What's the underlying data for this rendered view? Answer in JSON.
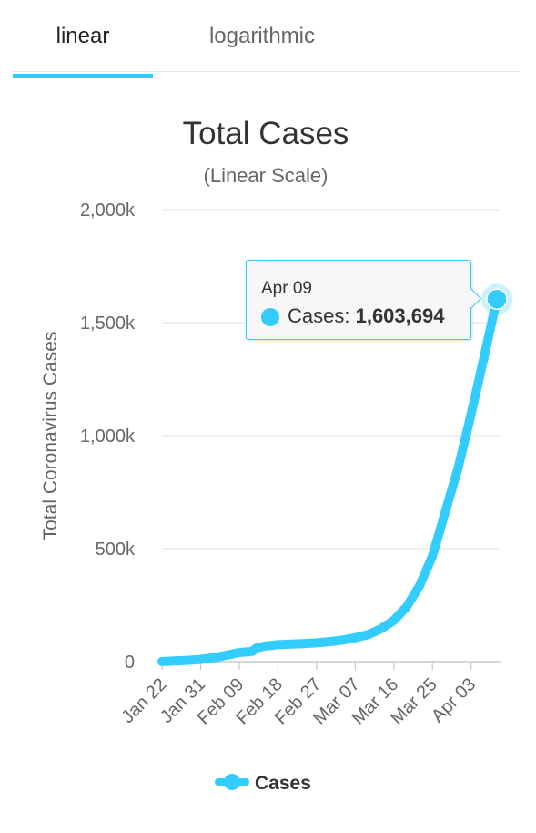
{
  "tabs": [
    {
      "label": "linear",
      "active": true
    },
    {
      "label": "logarithmic",
      "active": false
    }
  ],
  "colors": {
    "accent": "#33ccff",
    "grid": "#e6e6e6",
    "text": "#333333",
    "axis_text": "#666666"
  },
  "tooltip": {
    "date": "Apr 09",
    "series": "Cases",
    "separator": ": ",
    "value": "1,603,694"
  },
  "chart_data": {
    "type": "line",
    "title": "Total Cases",
    "subtitle": "(Linear Scale)",
    "ylabel": "Total Coronavirus Cases",
    "xlabel": "",
    "ylim": [
      0,
      2000000
    ],
    "yticks": [
      0,
      500000,
      1000000,
      1500000,
      2000000
    ],
    "ytick_labels": [
      "0",
      "500k",
      "1,000k",
      "1,500k",
      "2,000k"
    ],
    "xtick_labels": [
      "Jan 22",
      "Jan 31",
      "Feb 09",
      "Feb 18",
      "Feb 27",
      "Mar 07",
      "Mar 16",
      "Mar 25",
      "Apr 03"
    ],
    "grid": true,
    "legend_position": "bottom-center",
    "series": [
      {
        "name": "Cases",
        "x": [
          "Jan 22",
          "Jan 25",
          "Jan 28",
          "Jan 31",
          "Feb 03",
          "Feb 06",
          "Feb 09",
          "Feb 12",
          "Feb 13",
          "Feb 15",
          "Feb 18",
          "Feb 21",
          "Feb 24",
          "Feb 27",
          "Mar 01",
          "Mar 04",
          "Mar 07",
          "Mar 10",
          "Mar 13",
          "Mar 16",
          "Mar 19",
          "Mar 22",
          "Mar 25",
          "Mar 28",
          "Mar 31",
          "Apr 03",
          "Apr 06",
          "Apr 09"
        ],
        "values": [
          555,
          2900,
          5600,
          9800,
          17300,
          28300,
          40200,
          45200,
          60400,
          69000,
          75200,
          77400,
          79900,
          83000,
          88400,
          95300,
          105800,
          119300,
          145200,
          182400,
          243100,
          336200,
          467400,
          663800,
          857600,
          1095200,
          1345400,
          1603694
        ]
      }
    ]
  }
}
